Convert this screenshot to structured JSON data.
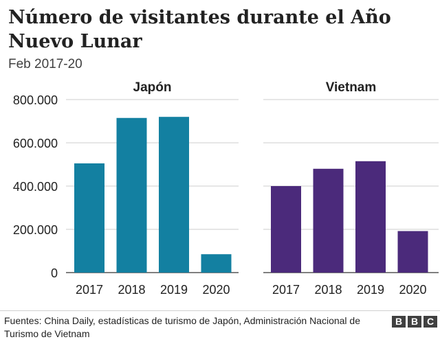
{
  "title": "Número de visitantes durante el Año Nuevo Lunar",
  "subtitle": "Feb 2017-20",
  "source": "Fuentes: China Daily, estadísticas de turismo de Japón, Administración Nacional de Turismo de Vietnam",
  "logo": [
    "B",
    "B",
    "C"
  ],
  "chart_data": [
    {
      "type": "bar",
      "title": "Japón",
      "categories": [
        "2017",
        "2018",
        "2019",
        "2020"
      ],
      "values": [
        505000,
        715000,
        720000,
        85000
      ],
      "ylim": [
        0,
        800000
      ],
      "yticks": [
        0,
        200000,
        400000,
        600000,
        800000
      ],
      "ytick_labels": [
        "0",
        "200.000",
        "400.000",
        "600.000",
        "800.000"
      ],
      "color": "#1380a1",
      "grid": true
    },
    {
      "type": "bar",
      "title": "Vietnam",
      "categories": [
        "2017",
        "2018",
        "2019",
        "2020"
      ],
      "values": [
        400000,
        480000,
        515000,
        192000
      ],
      "ylim": [
        0,
        800000
      ],
      "yticks": [
        0,
        200000,
        400000,
        600000,
        800000
      ],
      "color": "#4b2a7b",
      "grid": true
    }
  ]
}
